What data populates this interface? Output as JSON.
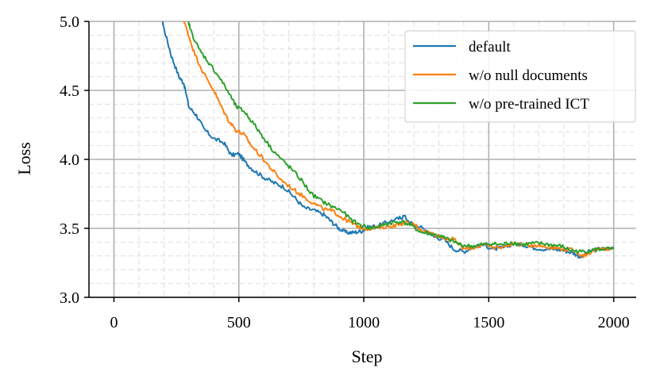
{
  "chart_data": {
    "type": "line",
    "title": "",
    "xlabel": "Step",
    "ylabel": "Loss",
    "xlim": [
      -100,
      2090
    ],
    "ylim": [
      3.0,
      5.0
    ],
    "xticks": [
      0,
      500,
      1000,
      1500,
      2000
    ],
    "xtick_labels": [
      "0",
      "500",
      "1000",
      "1500",
      "2000"
    ],
    "yticks": [
      3.0,
      3.5,
      4.0,
      4.5,
      5.0
    ],
    "ytick_labels": [
      "3.0",
      "3.5",
      "4.0",
      "4.5",
      "5.0"
    ],
    "grid": "major and minor",
    "legend_position": "top-right",
    "series": [
      {
        "name": "default",
        "color": "#1f77b4",
        "points": [
          [
            190,
            5.05
          ],
          [
            200,
            4.95
          ],
          [
            230,
            4.75
          ],
          [
            260,
            4.6
          ],
          [
            280,
            4.55
          ],
          [
            300,
            4.38
          ],
          [
            330,
            4.32
          ],
          [
            360,
            4.22
          ],
          [
            400,
            4.15
          ],
          [
            440,
            4.12
          ],
          [
            470,
            4.03
          ],
          [
            500,
            4.04
          ],
          [
            530,
            3.97
          ],
          [
            560,
            3.92
          ],
          [
            600,
            3.87
          ],
          [
            640,
            3.83
          ],
          [
            680,
            3.8
          ],
          [
            720,
            3.73
          ],
          [
            760,
            3.65
          ],
          [
            800,
            3.63
          ],
          [
            840,
            3.6
          ],
          [
            870,
            3.55
          ],
          [
            900,
            3.5
          ],
          [
            930,
            3.47
          ],
          [
            960,
            3.47
          ],
          [
            990,
            3.48
          ],
          [
            1020,
            3.51
          ],
          [
            1060,
            3.52
          ],
          [
            1100,
            3.55
          ],
          [
            1140,
            3.57
          ],
          [
            1160,
            3.59
          ],
          [
            1200,
            3.52
          ],
          [
            1240,
            3.5
          ],
          [
            1280,
            3.44
          ],
          [
            1320,
            3.42
          ],
          [
            1360,
            3.35
          ],
          [
            1400,
            3.33
          ],
          [
            1440,
            3.37
          ],
          [
            1480,
            3.38
          ],
          [
            1520,
            3.35
          ],
          [
            1560,
            3.36
          ],
          [
            1600,
            3.39
          ],
          [
            1640,
            3.38
          ],
          [
            1680,
            3.36
          ],
          [
            1720,
            3.35
          ],
          [
            1760,
            3.35
          ],
          [
            1800,
            3.34
          ],
          [
            1840,
            3.32
          ],
          [
            1870,
            3.29
          ],
          [
            1900,
            3.33
          ],
          [
            1940,
            3.35
          ],
          [
            1970,
            3.35
          ],
          [
            2000,
            3.36
          ]
        ]
      },
      {
        "name": "w/o null documents",
        "color": "#ff7f0e",
        "points": [
          [
            270,
            5.05
          ],
          [
            290,
            4.95
          ],
          [
            320,
            4.78
          ],
          [
            360,
            4.62
          ],
          [
            400,
            4.5
          ],
          [
            430,
            4.38
          ],
          [
            460,
            4.28
          ],
          [
            490,
            4.21
          ],
          [
            520,
            4.18
          ],
          [
            550,
            4.1
          ],
          [
            590,
            4.02
          ],
          [
            630,
            3.93
          ],
          [
            670,
            3.85
          ],
          [
            720,
            3.78
          ],
          [
            760,
            3.73
          ],
          [
            800,
            3.68
          ],
          [
            840,
            3.64
          ],
          [
            880,
            3.62
          ],
          [
            910,
            3.58
          ],
          [
            940,
            3.55
          ],
          [
            970,
            3.52
          ],
          [
            1000,
            3.5
          ],
          [
            1040,
            3.5
          ],
          [
            1080,
            3.51
          ],
          [
            1120,
            3.52
          ],
          [
            1160,
            3.54
          ],
          [
            1200,
            3.53
          ],
          [
            1240,
            3.48
          ],
          [
            1280,
            3.46
          ],
          [
            1320,
            3.43
          ],
          [
            1360,
            3.42
          ],
          [
            1400,
            3.35
          ],
          [
            1440,
            3.36
          ],
          [
            1480,
            3.38
          ],
          [
            1520,
            3.36
          ],
          [
            1560,
            3.37
          ],
          [
            1600,
            3.39
          ],
          [
            1640,
            3.38
          ],
          [
            1680,
            3.38
          ],
          [
            1720,
            3.37
          ],
          [
            1760,
            3.36
          ],
          [
            1800,
            3.35
          ],
          [
            1840,
            3.34
          ],
          [
            1880,
            3.3
          ],
          [
            1920,
            3.34
          ],
          [
            1960,
            3.35
          ],
          [
            2000,
            3.35
          ]
        ]
      },
      {
        "name": "w/o pre-trained ICT",
        "color": "#2ca02c",
        "points": [
          [
            290,
            5.05
          ],
          [
            310,
            4.92
          ],
          [
            340,
            4.8
          ],
          [
            380,
            4.7
          ],
          [
            420,
            4.6
          ],
          [
            460,
            4.48
          ],
          [
            490,
            4.38
          ],
          [
            520,
            4.35
          ],
          [
            550,
            4.28
          ],
          [
            590,
            4.18
          ],
          [
            630,
            4.08
          ],
          [
            670,
            4.0
          ],
          [
            710,
            3.93
          ],
          [
            750,
            3.85
          ],
          [
            790,
            3.75
          ],
          [
            830,
            3.7
          ],
          [
            870,
            3.66
          ],
          [
            910,
            3.63
          ],
          [
            950,
            3.56
          ],
          [
            990,
            3.52
          ],
          [
            1030,
            3.5
          ],
          [
            1070,
            3.52
          ],
          [
            1110,
            3.54
          ],
          [
            1150,
            3.55
          ],
          [
            1190,
            3.52
          ],
          [
            1230,
            3.47
          ],
          [
            1270,
            3.46
          ],
          [
            1310,
            3.44
          ],
          [
            1350,
            3.41
          ],
          [
            1390,
            3.38
          ],
          [
            1430,
            3.37
          ],
          [
            1470,
            3.38
          ],
          [
            1510,
            3.39
          ],
          [
            1550,
            3.38
          ],
          [
            1590,
            3.4
          ],
          [
            1630,
            3.38
          ],
          [
            1670,
            3.39
          ],
          [
            1710,
            3.39
          ],
          [
            1750,
            3.38
          ],
          [
            1790,
            3.37
          ],
          [
            1830,
            3.34
          ],
          [
            1870,
            3.33
          ],
          [
            1910,
            3.34
          ],
          [
            1950,
            3.35
          ],
          [
            2000,
            3.35
          ]
        ]
      }
    ]
  }
}
